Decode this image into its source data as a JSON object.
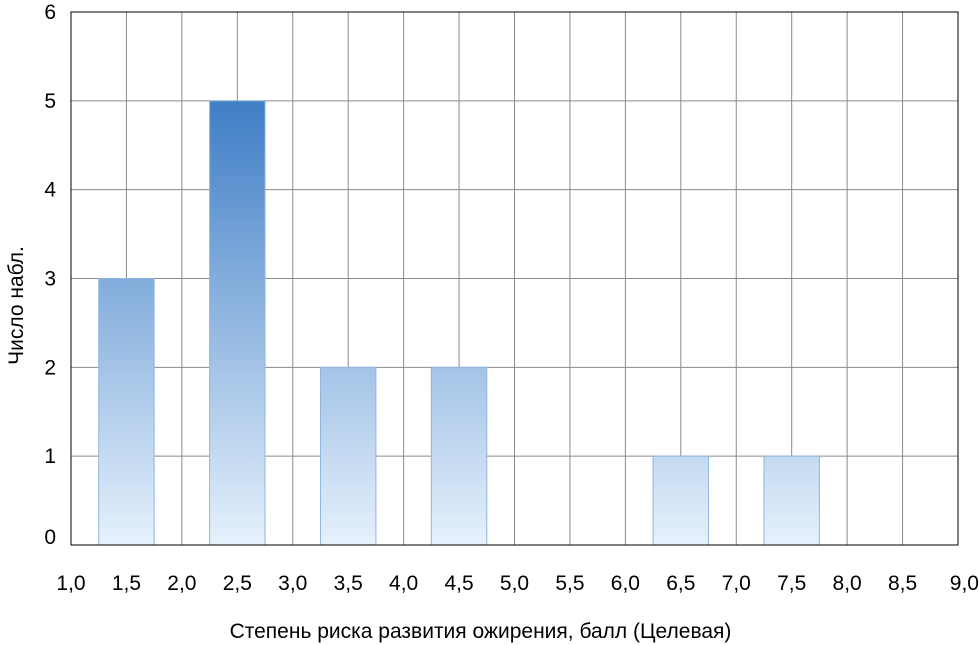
{
  "chart_data": {
    "type": "bar",
    "title": "",
    "xlabel": "Степень риска развития ожирения, балл (Целевая)",
    "ylabel": "Число набл.",
    "x_range": [
      1.0,
      9.0
    ],
    "ylim": [
      0,
      6
    ],
    "grid": true,
    "bar_width": 0.5,
    "bar_color_top": "#3f7ec6",
    "bar_color_bottom": "#e6f1fc",
    "x_ticks": [
      "1,0",
      "1,5",
      "2,0",
      "2,5",
      "3,0",
      "3,5",
      "4,0",
      "4,5",
      "5,0",
      "5,5",
      "6,0",
      "6,5",
      "7,0",
      "7,5",
      "8,0",
      "8,5",
      "9,0"
    ],
    "y_ticks": [
      "0",
      "1",
      "2",
      "3",
      "4",
      "5",
      "6"
    ],
    "bars": [
      {
        "x": 1.5,
        "value": 3
      },
      {
        "x": 2.5,
        "value": 5
      },
      {
        "x": 3.5,
        "value": 2
      },
      {
        "x": 4.5,
        "value": 2
      },
      {
        "x": 5.5,
        "value": 0
      },
      {
        "x": 6.5,
        "value": 1
      },
      {
        "x": 7.5,
        "value": 1
      },
      {
        "x": 8.5,
        "value": 0
      }
    ]
  }
}
